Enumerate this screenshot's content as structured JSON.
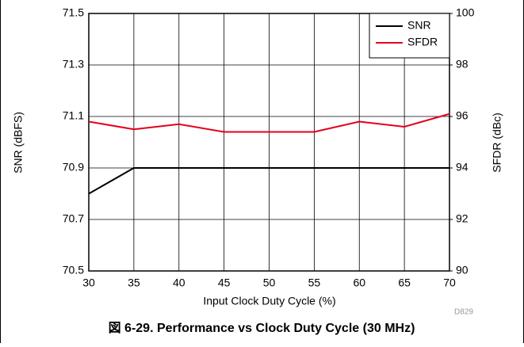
{
  "chart_data": {
    "type": "line",
    "xlabel": "Input Clock Duty Cycle (%)",
    "ylabel": "SNR (dBFS)",
    "y2label": "SFDR (dBc)",
    "caption": "図 6-29. Performance vs Clock Duty Cycle (30 MHz)",
    "note": "D829",
    "x": [
      30,
      35,
      40,
      45,
      50,
      55,
      60,
      65,
      70
    ],
    "xlim": [
      30,
      70
    ],
    "xticks": [
      30,
      35,
      40,
      45,
      50,
      55,
      60,
      65,
      70
    ],
    "ylim": [
      70.5,
      71.5
    ],
    "yticks": [
      70.5,
      70.7,
      70.9,
      71.1,
      71.3,
      71.5
    ],
    "y2lim": [
      90,
      100
    ],
    "y2ticks": [
      90,
      92,
      94,
      96,
      98,
      100
    ],
    "grid": true,
    "legend": "upper right",
    "series": [
      {
        "name": "SNR",
        "color": "#000000",
        "values": [
          70.8,
          70.9,
          70.9,
          70.9,
          70.9,
          70.9,
          70.9,
          70.9,
          70.9
        ]
      },
      {
        "name": "SFDR",
        "color": "#e3001b",
        "axis": "y2",
        "values": [
          95.8,
          95.5,
          95.7,
          95.4,
          95.4,
          95.4,
          95.8,
          95.6,
          96.1
        ]
      }
    ]
  }
}
